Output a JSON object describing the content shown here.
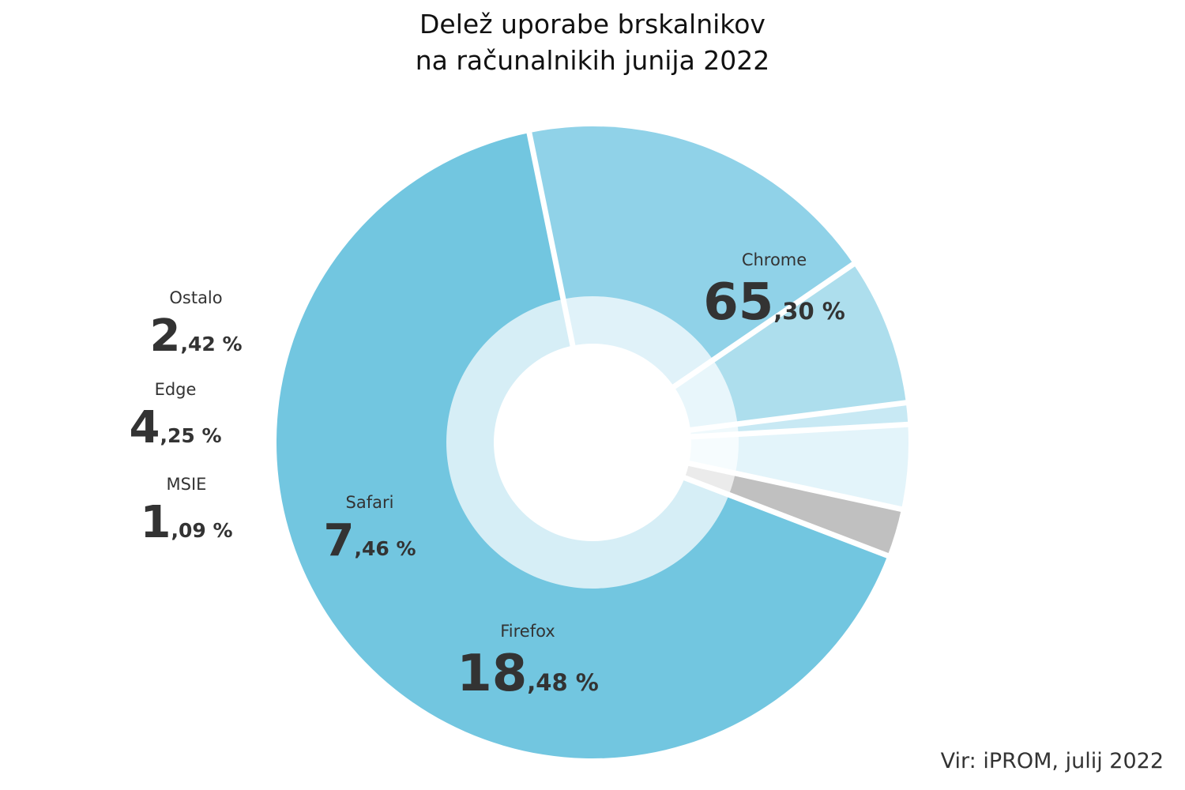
{
  "chart_data": {
    "type": "pie",
    "title_lines": [
      "Delež uporabe brskalnikov",
      "na računalnikih junija 2022"
    ],
    "slices": [
      {
        "name": "Chrome",
        "value": 65.3,
        "int": "65",
        "dec": ",30 %",
        "color": "#72c6e0",
        "inner_color": "#d6eef6"
      },
      {
        "name": "Firefox",
        "value": 18.48,
        "int": "18",
        "dec": ",48 %",
        "color": "#90d2e8",
        "inner_color": "#e0f2f9"
      },
      {
        "name": "Safari",
        "value": 7.46,
        "int": "7",
        "dec": ",46 %",
        "color": "#addeed",
        "inner_color": "#e8f6fb"
      },
      {
        "name": "MSIE",
        "value": 1.09,
        "int": "1",
        "dec": ",09 %",
        "color": "#c8e9f4",
        "inner_color": "#eff9fc"
      },
      {
        "name": "Edge",
        "value": 4.25,
        "int": "4",
        "dec": ",25 %",
        "color": "#e3f4fa",
        "inner_color": "#f6fcfe"
      },
      {
        "name": "Ostalo",
        "value": 2.42,
        "int": "2",
        "dec": ",42 %",
        "color": "#c0c0c0",
        "inner_color": "#ebebeb"
      }
    ],
    "legend": "none"
  },
  "source": "Vir: iPROM, julij 2022"
}
